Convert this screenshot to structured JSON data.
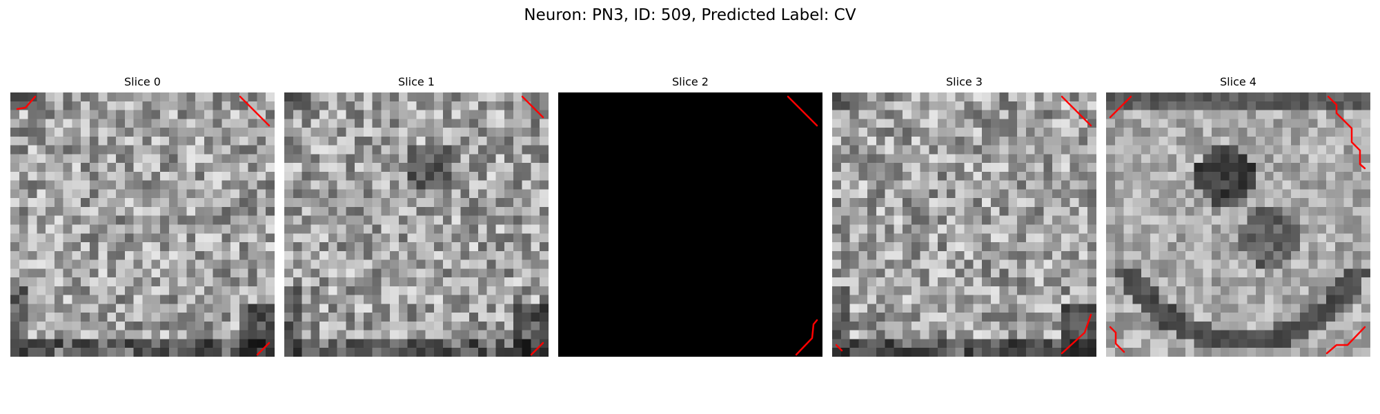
{
  "figure": {
    "suptitle": "Neuron: PN3, ID: 509, Predicted Label: CV"
  },
  "overlay_color": "#ff0000",
  "slices": [
    {
      "title": "Slice 0",
      "style": "noise-dark-bottom",
      "seed": 11
    },
    {
      "title": "Slice 1",
      "style": "noise-dark-bottom-right",
      "seed": 23
    },
    {
      "title": "Slice 2",
      "style": "black",
      "seed": 37
    },
    {
      "title": "Slice 3",
      "style": "noise-dark-bottom",
      "seed": 41
    },
    {
      "title": "Slice 4",
      "style": "blob",
      "seed": 53
    }
  ]
}
